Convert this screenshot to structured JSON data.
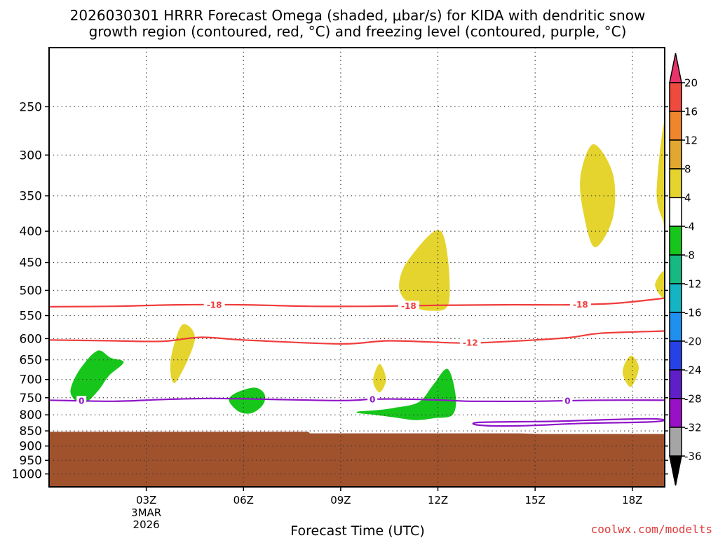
{
  "title_line1": "2026030301 HRRR Forecast Omega (shaded, μbar/s) for KIDA with dendritic snow",
  "title_line2": "growth region (contoured, red, °C) and freezing level (contoured, purple, °C)",
  "credit": "coolwx.com/modelts",
  "chart_data": {
    "type": "time-height cross-section",
    "xlabel": "Forecast Time (UTC)",
    "x_ticks": [
      {
        "hour": 3,
        "label": "03Z",
        "sub": [
          "3MAR",
          "2026"
        ]
      },
      {
        "hour": 6,
        "label": "06Z",
        "sub": []
      },
      {
        "hour": 9,
        "label": "09Z",
        "sub": []
      },
      {
        "hour": 12,
        "label": "12Z",
        "sub": []
      },
      {
        "hour": 15,
        "label": "15Z",
        "sub": []
      },
      {
        "hour": 18,
        "label": "18Z",
        "sub": []
      }
    ],
    "x_range_hours": [
      0,
      19
    ],
    "y_axis": "pressure (mb), log scale, reversed",
    "y_range_mb": [
      1050,
      200
    ],
    "y_ticks": [
      250,
      300,
      350,
      400,
      450,
      500,
      550,
      600,
      650,
      700,
      750,
      800,
      850,
      900,
      950,
      1000
    ],
    "grid": "dotted",
    "colorbar": {
      "levels": [
        20,
        16,
        12,
        8,
        4,
        -4,
        -8,
        -12,
        -16,
        -20,
        -24,
        -28,
        -32,
        -36
      ],
      "colors": [
        "#e8346a",
        "#ef4a3e",
        "#f0862c",
        "#e0a82e",
        "#e5d42d",
        "#ffffff",
        "#17c61b",
        "#16b982",
        "#14b4c2",
        "#1f8ff0",
        "#2642e6",
        "#5f1fc8",
        "#9a10c6",
        "#a5a5a5",
        "#000000"
      ]
    },
    "contours": [
      {
        "label": "-18",
        "color": "#f03c3c",
        "points": [
          [
            0,
            532
          ],
          [
            2,
            531
          ],
          [
            4,
            528
          ],
          [
            6,
            528
          ],
          [
            8,
            531
          ],
          [
            10,
            531
          ],
          [
            12,
            529
          ],
          [
            14,
            528
          ],
          [
            16,
            528
          ],
          [
            17.5,
            525
          ],
          [
            19,
            515
          ]
        ],
        "label_at": [
          5.1,
          11.1,
          16.4
        ]
      },
      {
        "label": "-12",
        "color": "#f03c3c",
        "points": [
          [
            0,
            603
          ],
          [
            2,
            605
          ],
          [
            3.5,
            606
          ],
          [
            4.7,
            597
          ],
          [
            6,
            603
          ],
          [
            9,
            612
          ],
          [
            10.5,
            605
          ],
          [
            12.7,
            610
          ],
          [
            14,
            607
          ],
          [
            16,
            598
          ],
          [
            17,
            588
          ],
          [
            19,
            583
          ]
        ],
        "label_at": [
          13.0
        ]
      },
      {
        "label": "0",
        "color": "#8f15c8",
        "points": [
          [
            0,
            757
          ],
          [
            2,
            760
          ],
          [
            3.5,
            755
          ],
          [
            5,
            752
          ],
          [
            6.5,
            754
          ],
          [
            9,
            758
          ],
          [
            10,
            754
          ],
          [
            11,
            754
          ],
          [
            12.2,
            757
          ],
          [
            13,
            760
          ],
          [
            15,
            760
          ],
          [
            17,
            757
          ],
          [
            19,
            757
          ]
        ],
        "label_at": [
          1.0,
          9.98,
          16.0
        ]
      },
      {
        "label": "0",
        "color": "#8f15c8",
        "closed": true,
        "points": [
          [
            13.3,
            823
          ],
          [
            15.5,
            820
          ],
          [
            16.8,
            816
          ],
          [
            18.5,
            812
          ],
          [
            19,
            816
          ],
          [
            18.5,
            822
          ],
          [
            16.5,
            826
          ],
          [
            14.5,
            834
          ],
          [
            13.3,
            832
          ]
        ],
        "label_at": []
      }
    ],
    "omega_shaded": [
      {
        "level": 4,
        "color": "#e5d42d",
        "points": [
          [
            3.75,
            653
          ],
          [
            4.1,
            570
          ],
          [
            4.5,
            602
          ],
          [
            3.9,
            708
          ]
        ]
      },
      {
        "level": 4,
        "color": "#e5d42d",
        "points": [
          [
            10.8,
            492
          ],
          [
            11.1,
            445
          ],
          [
            12.1,
            400
          ],
          [
            12.35,
            520
          ],
          [
            11.75,
            540
          ],
          [
            11.1,
            525
          ]
        ]
      },
      {
        "level": 4,
        "color": "#e5d42d",
        "points": [
          [
            16.4,
            325
          ],
          [
            16.8,
            288
          ],
          [
            17.4,
            322
          ],
          [
            17.4,
            380
          ],
          [
            16.85,
            425
          ],
          [
            16.5,
            375
          ]
        ]
      },
      {
        "level": 4,
        "color": "#e5d42d",
        "points": [
          [
            19,
            265
          ],
          [
            18.75,
            345
          ],
          [
            18.95,
            385
          ],
          [
            19,
            390
          ]
        ]
      },
      {
        "level": 4,
        "color": "#e5d42d",
        "points": [
          [
            18.7,
            490
          ],
          [
            19,
            465
          ],
          [
            19,
            515
          ]
        ]
      },
      {
        "level": 4,
        "color": "#e5d42d",
        "points": [
          [
            10.0,
            703
          ],
          [
            10.2,
            660
          ],
          [
            10.4,
            700
          ],
          [
            10.2,
            735
          ]
        ]
      },
      {
        "level": 4,
        "color": "#e5d42d",
        "points": [
          [
            17.7,
            680
          ],
          [
            17.95,
            640
          ],
          [
            18.2,
            670
          ],
          [
            17.95,
            720
          ]
        ]
      },
      {
        "level": -4,
        "color": "#17c61b",
        "points": [
          [
            0.7,
            715
          ],
          [
            1.0,
            668
          ],
          [
            1.5,
            628
          ],
          [
            1.9,
            645
          ],
          [
            2.3,
            656
          ],
          [
            1.85,
            690
          ],
          [
            1.5,
            732
          ],
          [
            1.05,
            768
          ],
          [
            0.7,
            745
          ]
        ]
      },
      {
        "level": -4,
        "color": "#17c61b",
        "points": [
          [
            5.55,
            757
          ],
          [
            5.8,
            735
          ],
          [
            6.35,
            722
          ],
          [
            6.65,
            740
          ],
          [
            6.6,
            770
          ],
          [
            6.25,
            795
          ],
          [
            5.85,
            790
          ]
        ]
      },
      {
        "level": -4,
        "color": "#17c61b",
        "points": [
          [
            9.55,
            790
          ],
          [
            10.1,
            786
          ],
          [
            10.6,
            780
          ],
          [
            11.4,
            763
          ],
          [
            11.85,
            715
          ],
          [
            12.3,
            673
          ],
          [
            12.55,
            745
          ],
          [
            12.45,
            800
          ],
          [
            11.9,
            810
          ],
          [
            11.3,
            816
          ],
          [
            10.6,
            807
          ],
          [
            10.05,
            800
          ],
          [
            9.55,
            795
          ]
        ]
      }
    ],
    "terrain": {
      "color": "#a0522d",
      "points": [
        [
          0,
          853
        ],
        [
          8,
          853
        ],
        [
          8.05,
          858
        ],
        [
          14.5,
          858
        ],
        [
          15.2,
          860
        ],
        [
          19,
          860
        ]
      ]
    }
  }
}
